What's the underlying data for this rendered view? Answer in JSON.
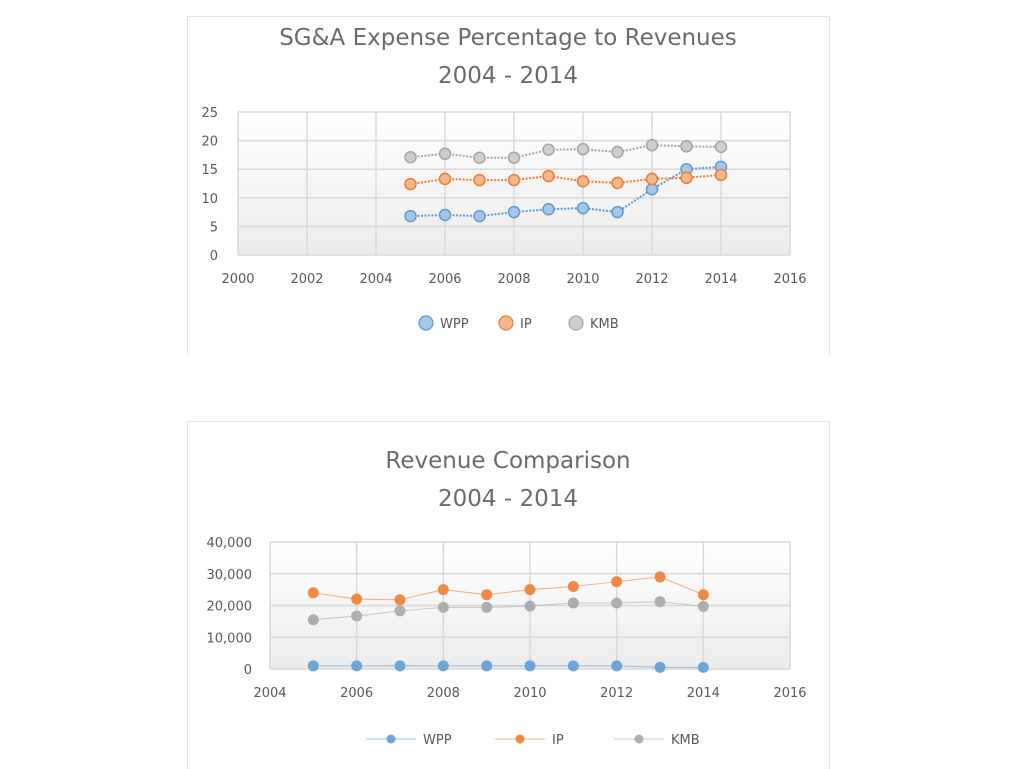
{
  "chart_data": [
    {
      "type": "scatter",
      "title": "SG&A Expense Percentage to Revenues",
      "subtitle": "2004 - 2014",
      "xlabel": "",
      "ylabel": "",
      "xlim": [
        2000,
        2016
      ],
      "ylim": [
        0,
        25
      ],
      "x_ticks": [
        2000,
        2002,
        2004,
        2006,
        2008,
        2010,
        2012,
        2014,
        2016
      ],
      "x_tick_labels": [
        "2000",
        "2002",
        "2004",
        "2006",
        "2008",
        "2010",
        "2012",
        "2014",
        "2016"
      ],
      "y_ticks": [
        0,
        5,
        10,
        15,
        20,
        25
      ],
      "y_tick_labels": [
        "0",
        "5",
        "10",
        "15",
        "20",
        "25"
      ],
      "grid": true,
      "legend_position": "bottom",
      "line_style": "dotted",
      "marker_style": "ring",
      "x": [
        2005,
        2006,
        2007,
        2008,
        2009,
        2010,
        2011,
        2012,
        2013,
        2014
      ],
      "series": [
        {
          "name": "WPP",
          "color": "#5b9bd5",
          "values": [
            6.8,
            7.0,
            6.8,
            7.5,
            8.0,
            8.2,
            7.5,
            11.5,
            15.0,
            15.4
          ]
        },
        {
          "name": "IP",
          "color": "#ed7d31",
          "values": [
            12.4,
            13.3,
            13.1,
            13.1,
            13.8,
            12.9,
            12.6,
            13.3,
            13.5,
            14.0
          ]
        },
        {
          "name": "KMB",
          "color": "#a5a5a5",
          "values": [
            17.1,
            17.7,
            17.0,
            17.0,
            18.4,
            18.5,
            18.0,
            19.2,
            19.0,
            18.9
          ]
        }
      ]
    },
    {
      "type": "scatter",
      "title": "Revenue Comparison",
      "subtitle": "2004 - 2014",
      "xlabel": "",
      "ylabel": "",
      "xlim": [
        2004,
        2016
      ],
      "ylim": [
        0,
        40000
      ],
      "x_ticks": [
        2004,
        2006,
        2008,
        2010,
        2012,
        2014,
        2016
      ],
      "x_tick_labels": [
        "2004",
        "2006",
        "2008",
        "2010",
        "2012",
        "2014",
        "2016"
      ],
      "y_ticks": [
        0,
        10000,
        20000,
        30000,
        40000
      ],
      "y_tick_labels": [
        "0",
        "10,000",
        "20,000",
        "30,000",
        "40,000"
      ],
      "grid": true,
      "legend_position": "bottom",
      "line_style": "thin",
      "marker_style": "filled",
      "x": [
        2005,
        2006,
        2007,
        2008,
        2009,
        2010,
        2011,
        2012,
        2013,
        2014
      ],
      "series": [
        {
          "name": "WPP",
          "color": "#5b9bd5",
          "values": [
            1000,
            1000,
            1000,
            1000,
            1000,
            1000,
            1000,
            1000,
            500,
            500
          ]
        },
        {
          "name": "IP",
          "color": "#ed7d31",
          "values": [
            24000,
            22000,
            21800,
            25000,
            23400,
            25000,
            26000,
            27500,
            29000,
            23400
          ]
        },
        {
          "name": "KMB",
          "color": "#a5a5a5",
          "values": [
            15500,
            16700,
            18300,
            19400,
            19400,
            19800,
            20800,
            20800,
            21200,
            19700
          ]
        }
      ]
    }
  ]
}
